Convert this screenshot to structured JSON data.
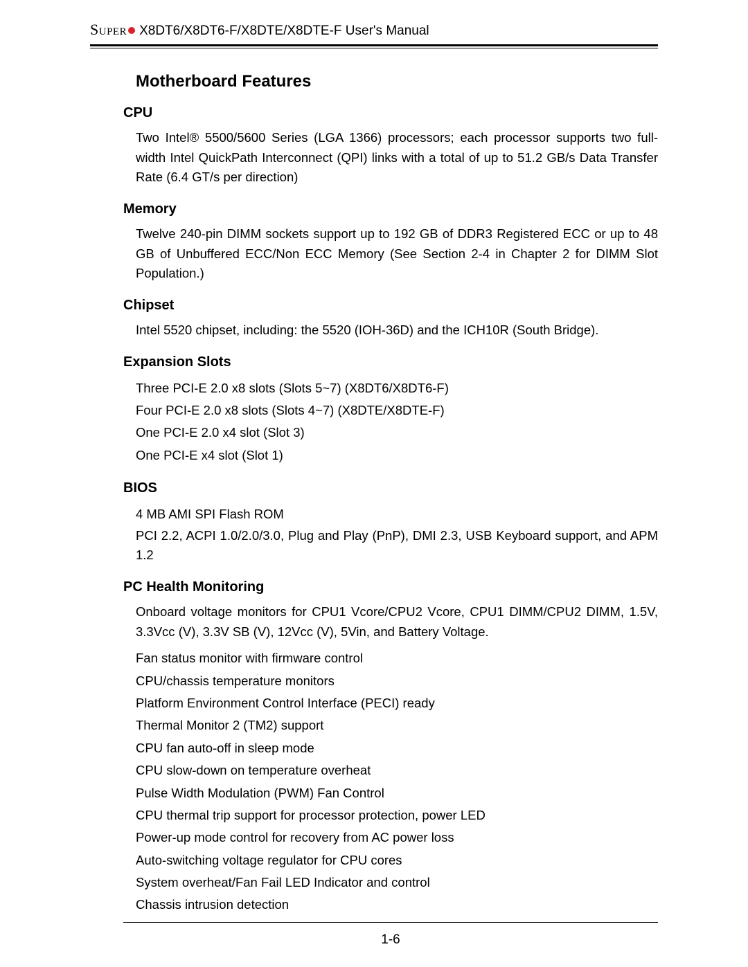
{
  "header": {
    "brand": "Super",
    "title": " X8DT6/X8DT6-F/X8DTE/X8DTE-F User's Manual"
  },
  "colors": {
    "accent_dot": "#d8232a",
    "text": "#000000",
    "background": "#ffffff"
  },
  "main_heading": "Motherboard Features",
  "sections": {
    "cpu": {
      "heading": "CPU",
      "text": "Two Intel® 5500/5600 Series (LGA 1366) processors; each processor supports two full-width Intel QuickPath Interconnect (QPI) links with a total of up to 51.2 GB/s Data Transfer Rate (6.4 GT/s per direction)"
    },
    "memory": {
      "heading": "Memory",
      "text": "Twelve 240-pin DIMM sockets support up to 192 GB of DDR3 Registered ECC or up to 48 GB of Unbuffered ECC/Non ECC Memory (See Section 2-4 in Chapter 2 for DIMM Slot Population.)"
    },
    "chipset": {
      "heading": "Chipset",
      "text": "Intel 5520 chipset, including: the 5520 (IOH-36D) and the ICH10R (South Bridge)."
    },
    "expansion": {
      "heading": "Expansion Slots",
      "items": [
        "Three PCI-E 2.0 x8 slots  (Slots 5~7) (X8DT6/X8DT6-F)",
        "Four PCI-E 2.0 x8 slots  (Slots 4~7) (X8DTE/X8DTE-F)",
        "One PCI-E 2.0 x4 slot (Slot 3)",
        "One PCI-E x4 slot (Slot 1)"
      ]
    },
    "bios": {
      "heading": "BIOS",
      "items": [
        "4 MB AMI SPI Flash ROM",
        "PCI 2.2, ACPI 1.0/2.0/3.0, Plug and Play (PnP), DMI 2.3, USB Keyboard support, and APM 1.2"
      ]
    },
    "pchealth": {
      "heading": "PC Health Monitoring",
      "items": [
        "Onboard voltage monitors for CPU1 Vcore/CPU2 Vcore, CPU1 DIMM/CPU2 DIMM, 1.5V, 3.3Vcc (V), 3.3V SB (V), 12Vcc (V), 5Vin, and Battery Voltage.",
        "Fan status monitor with firmware control",
        "CPU/chassis temperature monitors",
        "Platform Environment Control Interface (PECI) ready",
        "Thermal Monitor 2 (TM2) support",
        "CPU fan auto-off in sleep mode",
        "CPU slow-down on temperature overheat",
        "Pulse Width Modulation (PWM) Fan Control",
        "CPU thermal trip support for processor protection, power LED",
        "Power-up mode control for recovery from AC power loss",
        "Auto-switching voltage regulator for CPU cores",
        "System overheat/Fan Fail LED Indicator and control",
        "Chassis intrusion detection"
      ]
    }
  },
  "page_number": "1-6"
}
